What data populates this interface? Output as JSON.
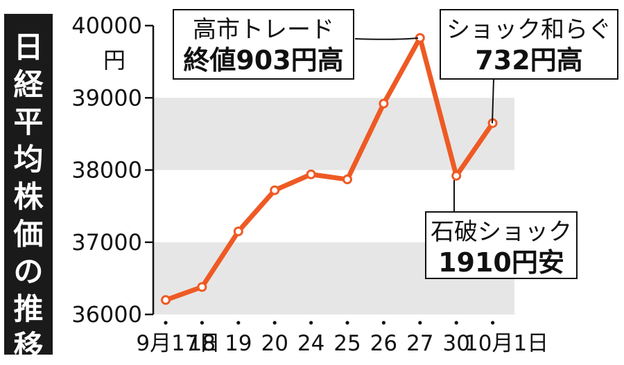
{
  "chart_data": {
    "type": "line",
    "title": "日経平均株価の推移",
    "y_unit": "円",
    "ylim": [
      36000,
      40000
    ],
    "yticks": [
      36000,
      37000,
      38000,
      39000,
      40000
    ],
    "ytick_labels": [
      "36000",
      "37000",
      "38000",
      "39000",
      "40000"
    ],
    "categories": [
      "9月17日",
      "18",
      "19",
      "20",
      "24",
      "25",
      "26",
      "27",
      "30",
      "10月1日"
    ],
    "values": [
      36200,
      36380,
      37150,
      37720,
      37940,
      37870,
      38920,
      39830,
      37920,
      38650
    ],
    "bands": [
      [
        36000,
        37000
      ],
      [
        38000,
        39000
      ]
    ],
    "annotations": [
      {
        "line1": "高市トレード",
        "line2": "終値903円高",
        "point_index": 7
      },
      {
        "line1": "ショック和らぐ",
        "line2": "732円高",
        "point_index": 9
      },
      {
        "line1": "石破ショック",
        "line2": "1910円安",
        "point_index": 8
      }
    ],
    "colors": {
      "line": "#ee5a24",
      "band": "#e6e6e6",
      "title_bg": "#1a1a1a"
    }
  }
}
